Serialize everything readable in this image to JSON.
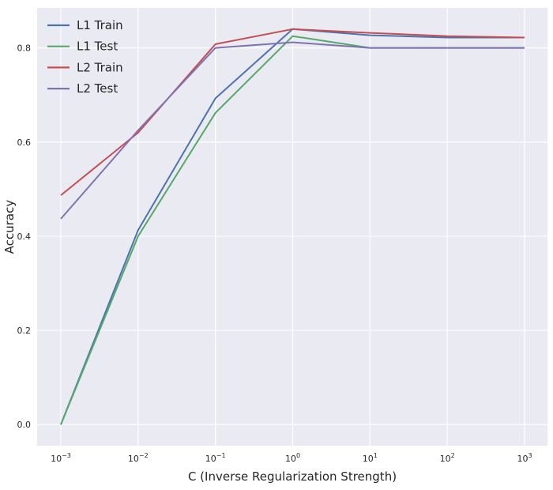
{
  "chart_data": {
    "type": "line",
    "title": "",
    "xlabel": "C (Inverse Regularization Strength)",
    "ylabel": "Accuracy",
    "xscale": "log",
    "x": [
      0.001,
      0.01,
      0.1,
      1,
      10,
      100,
      1000
    ],
    "x_ticks": [
      {
        "base": "10",
        "exp": "−3"
      },
      {
        "base": "10",
        "exp": "−2"
      },
      {
        "base": "10",
        "exp": "−1"
      },
      {
        "base": "10",
        "exp": "0"
      },
      {
        "base": "10",
        "exp": "1"
      },
      {
        "base": "10",
        "exp": "2"
      },
      {
        "base": "10",
        "exp": "3"
      }
    ],
    "y_ticks": [
      0.0,
      0.2,
      0.4,
      0.6,
      0.8
    ],
    "y_tick_labels": [
      "0.0",
      "0.2",
      "0.4",
      "0.6",
      "0.8"
    ],
    "ylim": [
      -0.045,
      0.885
    ],
    "grid": true,
    "legend_position": "top-left",
    "series": [
      {
        "name": "L1 Train",
        "color": "#4c72b0",
        "values": [
          0.0,
          0.413,
          0.693,
          0.84,
          0.827,
          0.822,
          0.822
        ]
      },
      {
        "name": "L1 Test",
        "color": "#55a868",
        "values": [
          0.0,
          0.4,
          0.662,
          0.825,
          0.8,
          0.8,
          0.8
        ]
      },
      {
        "name": "L2 Train",
        "color": "#c44e52",
        "values": [
          0.487,
          0.62,
          0.808,
          0.84,
          0.832,
          0.825,
          0.822
        ]
      },
      {
        "name": "L2 Test",
        "color": "#8172b2",
        "values": [
          0.437,
          0.625,
          0.8,
          0.812,
          0.8,
          0.8,
          0.8
        ]
      }
    ],
    "colors": {
      "plot_background": "#eaeaf2",
      "grid": "#ffffff",
      "text": "#262626"
    }
  }
}
